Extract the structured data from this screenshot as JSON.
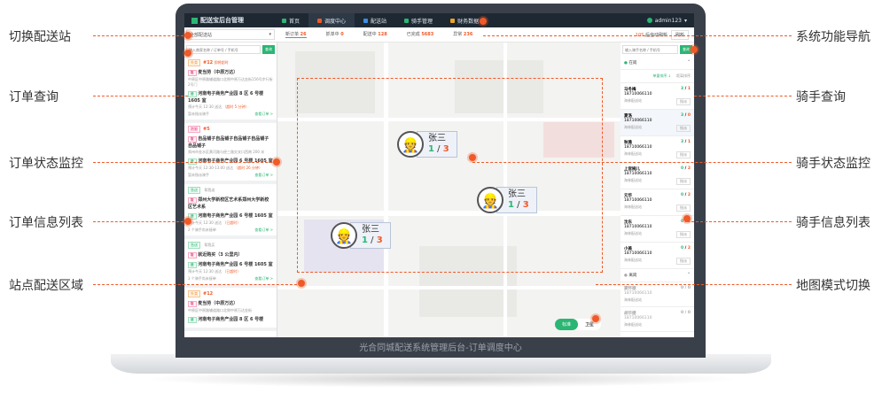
{
  "caption": "光合同城配送系统管理后台-订单调度中心",
  "nav": {
    "logo": "配送宝后台管理",
    "items": [
      {
        "label": "首页",
        "color": "#2bb673"
      },
      {
        "label": "调度中心",
        "color": "#f05a28"
      },
      {
        "label": "配送站",
        "color": "#3a8ee6"
      },
      {
        "label": "骑手管理",
        "color": "#2bb673"
      },
      {
        "label": "财务数据",
        "color": "#f0a028"
      }
    ],
    "user": "admin123"
  },
  "stats": {
    "station": "全部配送站",
    "items": [
      {
        "label": "新订单",
        "value": "26"
      },
      {
        "label": "抓单中",
        "value": "0"
      },
      {
        "label": "配送中",
        "value": "128"
      },
      {
        "label": "已完成",
        "value": "5683"
      },
      {
        "label": "异常",
        "value": "236"
      }
    ],
    "refresh_count": "10S",
    "refresh_label": "后自动刷新",
    "refresh_button": "刷新"
  },
  "order_search": {
    "placeholder": "输入商家名称 / 订单号 / 手机号",
    "button": "查询"
  },
  "orders": [
    {
      "tag": "外卖",
      "tagclass": "t1",
      "num": "#12",
      "extra": "即将超时",
      "from": "麦当劳（中原万达）",
      "from_sub": "中原区中原路辅道路口北侧中原万达金街156号步行街2号门",
      "to": "河南电子商务产业园 8 区 6 号楼 1605 室",
      "time": "预计今天 12:30 送达",
      "late": "（超时 5 分钟）",
      "rider": "暂未指派骑手",
      "link": "查看订单 >"
    },
    {
      "tag": "跑腿",
      "tagclass": "t2",
      "num": "#5",
      "extra": "",
      "from": "自品铺子自品铺子自品铺子自品铺子自品铺子",
      "from_sub": "郑州市金水区黄河路与经三路交叉口西南 200 米",
      "to": "河南电子商务产业园 6 号楼 1605 室",
      "time": "预计今天 12:30-13:00 送达",
      "late": "（超时 26 分钟）",
      "rider": "暂未指派骑手",
      "link": "查看订单 >"
    },
    {
      "tag": "急送",
      "tagclass": "t3",
      "num": "",
      "extra": "帮我送",
      "from": "郑州大学新校区艺术系郑州大学新校区艺术系",
      "from_sub": "",
      "to": "河南电子商务产业园 6 号楼 1605 室",
      "time": "预计今天 12:30 送达",
      "late": "（已超时）",
      "rider": "2 个骑手尚未接单",
      "link": "查看订单 >"
    },
    {
      "tag": "急送",
      "tagclass": "t3",
      "num": "",
      "extra": "帮我买",
      "from": "就近购买（3 公里内）",
      "from_sub": "",
      "to": "河南电子商务产业园 6 号楼 1605 室",
      "time": "预计今天 12:30 送达",
      "late": "（已超时）",
      "rider": "3 个骑手尚未接单",
      "link": "查看订单 >"
    },
    {
      "tag": "外卖",
      "tagclass": "t1",
      "num": "#12",
      "extra": "",
      "from": "麦当劳（中原万达）",
      "from_sub": "中原区中原路辅道路口北侧中原万达金街",
      "to": "河南电子商务产业园 8 区 6 号楼",
      "time": "",
      "late": "",
      "rider": "",
      "link": ""
    }
  ],
  "markers": [
    {
      "name": "张三",
      "done": "1",
      "total": "3"
    },
    {
      "name": "张三",
      "done": "1",
      "total": "3"
    },
    {
      "name": "张三",
      "done": "1",
      "total": "3"
    }
  ],
  "map_modes": [
    "标准",
    "卫星"
  ],
  "rider_search": {
    "placeholder": "输入骑手名称 / 手机号",
    "button": "查询"
  },
  "rider_groups": {
    "online": "在岗",
    "offline": "离岗",
    "sort1": "单量排序 ↓",
    "sort2": "距离排序"
  },
  "riders": [
    {
      "name": "马冬梅",
      "a": "3",
      "b": "1",
      "phone": "18710066110",
      "station": "海林配送站",
      "btn": "指派"
    },
    {
      "name": "夏洛",
      "a": "3",
      "b": "0",
      "phone": "18710066110",
      "station": "海林配送站",
      "btn": "指派"
    },
    {
      "name": "秋雅",
      "a": "3",
      "b": "1",
      "phone": "18710066110",
      "station": "海林配送站",
      "btn": "指派"
    },
    {
      "name": "上官婉儿",
      "a": "0",
      "b": "2",
      "phone": "18710066110",
      "station": "海林配送站",
      "btn": "指派"
    },
    {
      "name": "元华",
      "a": "0",
      "b": "2",
      "phone": "18710066110",
      "station": "海林配送站",
      "btn": "指派"
    },
    {
      "name": "沈东",
      "a": "0",
      "b": "2",
      "phone": "18710066110",
      "station": "海林配送站",
      "btn": "指派"
    },
    {
      "name": "小美",
      "a": "0",
      "b": "2",
      "phone": "18710066110",
      "station": "海林配送站",
      "btn": "指派"
    }
  ],
  "offline_riders": [
    {
      "name": "窦怀德",
      "a": "0",
      "b": "0",
      "phone": "18710066110",
      "station": "海林配送站"
    },
    {
      "name": "胡华捷",
      "a": "0",
      "b": "0",
      "phone": "18710066110",
      "station": "海林配送站"
    }
  ],
  "callouts": {
    "left": [
      "切换配送站",
      "订单查询",
      "订单状态监控",
      "订单信息列表",
      "站点配送区域"
    ],
    "right": [
      "系统功能导航",
      "骑手查询",
      "骑手状态监控",
      "骑手信息列表",
      "地图模式切换"
    ]
  },
  "accent": "#2bb673",
  "highlight": "#f05a28"
}
